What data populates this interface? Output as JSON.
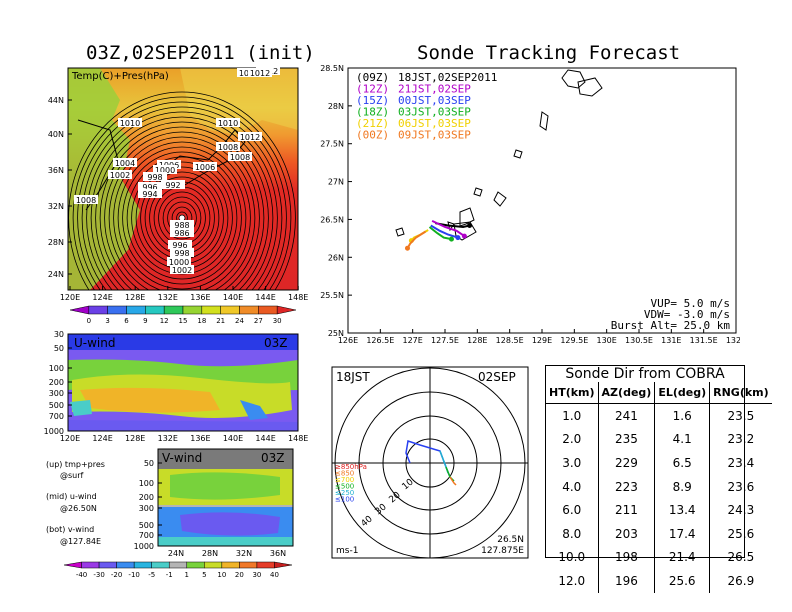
{
  "left_title": "03Z,02SEP2011 (init)",
  "right_title": "Sonde Tracking Forecast",
  "map_panel": {
    "label": "Temp(C)+Pres(hPa)",
    "lat_ticks": [
      "44N",
      "40N",
      "36N",
      "32N",
      "28N",
      "24N"
    ],
    "lon_ticks": [
      "120E",
      "124E",
      "128E",
      "132E",
      "136E",
      "140E",
      "144E",
      "148E"
    ],
    "isobar_labels": [
      "1012",
      "1012",
      "1010",
      "1010",
      "1008",
      "1008",
      "1008",
      "1006",
      "1006",
      "1004",
      "1002",
      "1000",
      "998",
      "996",
      "994",
      "992",
      "988",
      "986",
      "996",
      "998",
      "1000",
      "1002",
      "1012",
      "1012"
    ],
    "colorbar_ticks": [
      "0",
      "3",
      "6",
      "9",
      "12",
      "15",
      "18",
      "21",
      "24",
      "27",
      "30"
    ],
    "colorbar_colors": [
      "#a000c8",
      "#6a40e6",
      "#3a70f0",
      "#28a8e8",
      "#26c8c0",
      "#2ec85a",
      "#96d432",
      "#d2e01e",
      "#f0c828",
      "#f08c28",
      "#ea5a22",
      "#de2626"
    ]
  },
  "u_panel": {
    "label": "U-wind",
    "time": "03Z",
    "y_ticks": [
      "30",
      "50",
      "100",
      "200",
      "300",
      "500",
      "700",
      "1000"
    ],
    "x_ticks": [
      "120E",
      "124E",
      "128E",
      "132E",
      "136E",
      "140E",
      "144E",
      "148E"
    ]
  },
  "v_panel": {
    "label": "V-wind",
    "time": "03Z",
    "y_ticks": [
      "50",
      "100",
      "200",
      "300",
      "500",
      "700",
      "1000"
    ],
    "x_ticks": [
      "24N",
      "28N",
      "32N",
      "36N"
    ]
  },
  "captions": {
    "up_1": "(up) tmp+pres",
    "up_2": "@surf",
    "mid_1": "(mid) u-wind",
    "mid_2": "@26.50N",
    "bot_1": "(bot) v-wind",
    "bot_2": "@127.84E"
  },
  "wind_colorbar": {
    "ticks": [
      "-40",
      "-30",
      "-20",
      "-10",
      "-5",
      "-1",
      "1",
      "5",
      "10",
      "20",
      "30",
      "40"
    ],
    "colors": [
      "#c800c8",
      "#9a3ae6",
      "#6a5af0",
      "#3a8cf0",
      "#28b4e0",
      "#4acdc8",
      "#b4b4b4",
      "#78d23c",
      "#c8dc28",
      "#f0b428",
      "#f07828",
      "#e63c28",
      "#c81e1e"
    ]
  },
  "tracking_map": {
    "lat_ticks": [
      "28.5N",
      "28N",
      "27.5N",
      "27N",
      "26.5N",
      "26N",
      "25.5N",
      "25N"
    ],
    "lon_ticks": [
      "126E",
      "126.5E",
      "127E",
      "127.5E",
      "128E",
      "128.5E",
      "129E",
      "129.5E",
      "130E",
      "130.5E",
      "131E",
      "131.5E",
      "132E"
    ],
    "legend": [
      {
        "code": "(09Z)",
        "time": "18JST,02SEP2011",
        "color": "#000000"
      },
      {
        "code": "(12Z)",
        "time": "21JST,02SEP",
        "color": "#b000c8"
      },
      {
        "code": "(15Z)",
        "time": "00JST,03SEP",
        "color": "#2840f0"
      },
      {
        "code": "(18Z)",
        "time": "03JST,03SEP",
        "color": "#10b020"
      },
      {
        "code": "(21Z)",
        "time": "06JST,03SEP",
        "color": "#f0d000"
      },
      {
        "code": "(00Z)",
        "time": "09JST,03SEP",
        "color": "#f07820"
      }
    ],
    "params": [
      "VUP= 5.0 m/s",
      "VDW= -3.0 m/s",
      "Burst Alt= 25.0 km"
    ],
    "tracks": [
      {
        "color": "#000000",
        "points": [
          [
            127.35,
            26.45
          ],
          [
            127.55,
            26.42
          ],
          [
            127.78,
            26.4
          ],
          [
            127.88,
            26.42
          ]
        ]
      },
      {
        "color": "#b000c8",
        "points": [
          [
            127.3,
            26.48
          ],
          [
            127.5,
            26.4
          ],
          [
            127.68,
            26.35
          ],
          [
            127.8,
            26.28
          ]
        ]
      },
      {
        "color": "#2840f0",
        "points": [
          [
            127.28,
            26.42
          ],
          [
            127.42,
            26.35
          ],
          [
            127.55,
            26.3
          ],
          [
            127.7,
            26.26
          ]
        ]
      },
      {
        "color": "#10b020",
        "points": [
          [
            127.26,
            26.4
          ],
          [
            127.38,
            26.32
          ],
          [
            127.48,
            26.26
          ],
          [
            127.6,
            26.24
          ]
        ]
      },
      {
        "color": "#f0d000",
        "points": [
          [
            127.24,
            26.36
          ],
          [
            127.12,
            26.3
          ],
          [
            127.02,
            26.26
          ],
          [
            126.98,
            26.22
          ]
        ]
      },
      {
        "color": "#f07820",
        "points": [
          [
            127.2,
            26.34
          ],
          [
            127.05,
            26.26
          ],
          [
            126.96,
            26.18
          ],
          [
            126.92,
            26.12
          ]
        ]
      }
    ]
  },
  "polar_panel": {
    "time": "18JST",
    "date": "02SEP",
    "legend": [
      {
        "label": "≥850hPa",
        "color": "#e02020"
      },
      {
        "label": "≤850",
        "color": "#f07820"
      },
      {
        "label": "≤700",
        "color": "#f0d000"
      },
      {
        "label": "≤500",
        "color": "#10b020"
      },
      {
        "label": "≤250",
        "color": "#20b0d0"
      },
      {
        "label": "≤100",
        "color": "#2840f0"
      }
    ],
    "ring_labels": [
      "10",
      "20",
      "30",
      "40"
    ],
    "unit": "ms-1",
    "location_1": "26.5N",
    "location_2": "127.875E"
  },
  "cobra": {
    "title": "Sonde Dir from COBRA",
    "columns": [
      "HT(km)",
      "AZ(deg)",
      "EL(deg)",
      "RNG(km)"
    ],
    "rows": [
      [
        "1.0",
        "241",
        "1.6",
        "23.5"
      ],
      [
        "2.0",
        "235",
        "4.1",
        "23.2"
      ],
      [
        "3.0",
        "229",
        "6.5",
        "23.4"
      ],
      [
        "4.0",
        "223",
        "8.9",
        "23.6"
      ],
      [
        "6.0",
        "211",
        "13.4",
        "24.3"
      ],
      [
        "8.0",
        "203",
        "17.4",
        "25.6"
      ],
      [
        "10.0",
        "198",
        "21.4",
        "26.5"
      ],
      [
        "12.0",
        "196",
        "25.6",
        "26.9"
      ]
    ]
  }
}
